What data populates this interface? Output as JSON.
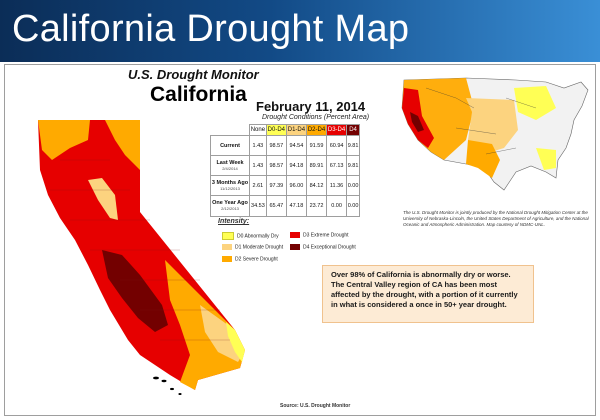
{
  "header": {
    "title": "California Drought Map"
  },
  "map_block": {
    "heading": "U.S. Drought Monitor",
    "state": "California",
    "date": "February 11, 2014",
    "conditions_label": "Drought Conditions (Percent Area)"
  },
  "table": {
    "columns": [
      "None",
      "D0-D4",
      "D1-D4",
      "D2-D4",
      "D3-D4",
      "D4"
    ],
    "column_colors": [
      "#ffffff",
      "#ffff55",
      "#fcd37f",
      "#ffaa00",
      "#e60000",
      "#730000"
    ],
    "rows": [
      {
        "label": "Current",
        "sub": "",
        "values": [
          "1.43",
          "98.57",
          "94.54",
          "91.59",
          "60.94",
          "9.81"
        ]
      },
      {
        "label": "Last Week",
        "sub": "2/4/2014",
        "values": [
          "1.43",
          "98.57",
          "94.18",
          "89.91",
          "67.13",
          "9.81"
        ]
      },
      {
        "label": "3 Months Ago",
        "sub": "11/12/2013",
        "values": [
          "2.61",
          "97.39",
          "96.00",
          "84.12",
          "11.36",
          "0.00"
        ]
      },
      {
        "label": "One Year Ago",
        "sub": "2/12/2013",
        "values": [
          "34.53",
          "65.47",
          "47.18",
          "23.72",
          "0.00",
          "0.00"
        ]
      }
    ]
  },
  "legend": {
    "title": "Intensity:",
    "items": [
      {
        "label": "D0 Abnormally Dry",
        "color": "#ffff55"
      },
      {
        "label": "D1 Moderate Drought",
        "color": "#fcd37f"
      },
      {
        "label": "D2 Severe Drought",
        "color": "#ffaa00"
      },
      {
        "label": "D3 Extreme Drought",
        "color": "#e60000"
      },
      {
        "label": "D4 Exceptional Drought",
        "color": "#730000"
      }
    ]
  },
  "us_map_caption": "The U.S. Drought Monitor is jointly produced by the National Drought Mitigation Center at the University of Nebraska-Lincoln, the United States Department of Agriculture, and the National Oceanic and Atmospheric Administration. Map courtesy of NDMC-UNL.",
  "callout": "Over 98% of California is abnormally dry or worse. The Central Valley region of CA has been most affected by the drought, with a portion of it currently in what is considered a once in 50+ year drought.",
  "source": "Source: U.S. Drought Monitor",
  "colors": {
    "banner_dark": "#0b2d57",
    "banner_light": "#3a8fd6",
    "d0": "#ffff55",
    "d1": "#fcd37f",
    "d2": "#ffaa00",
    "d3": "#e60000",
    "d4": "#730000",
    "callout_bg": "#fdebd5"
  }
}
